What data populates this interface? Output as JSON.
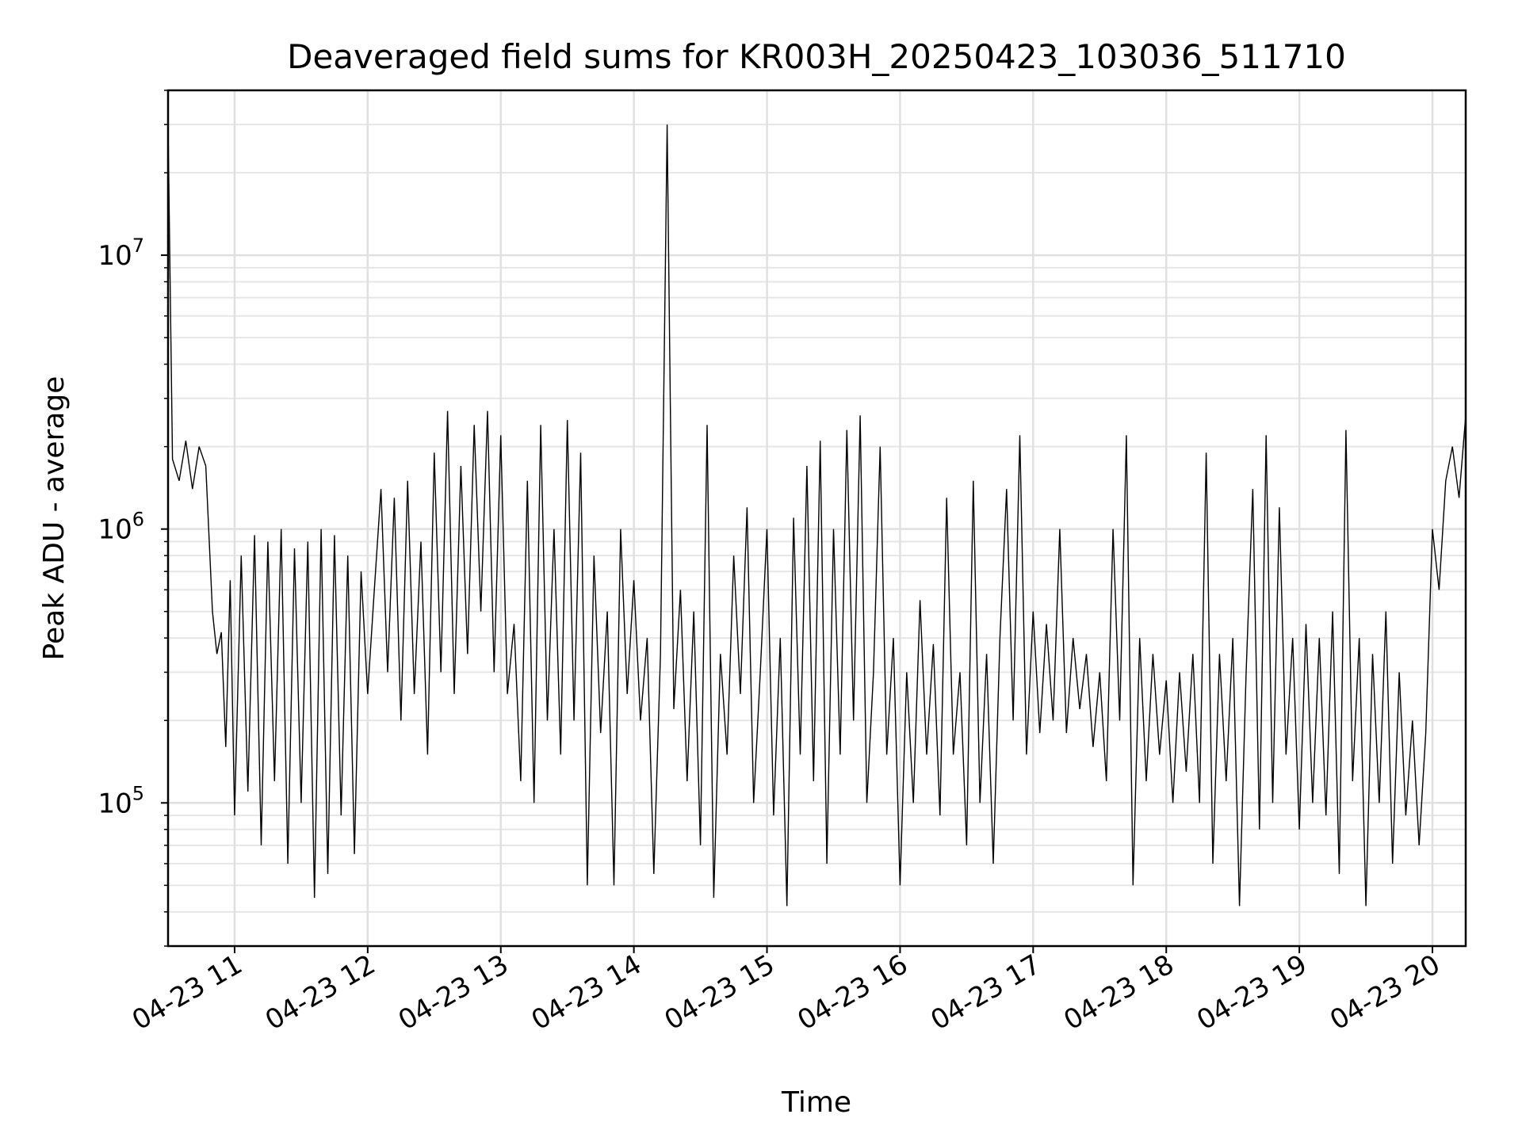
{
  "chart_data": {
    "type": "line",
    "title": "Deaveraged field sums for KR003H_20250423_103036_511710",
    "xlabel": "Time",
    "ylabel": "Peak ADU - average",
    "yscale": "log",
    "grid": true,
    "line_color": "#000000",
    "x_range": [
      "2025-04-23 10:30",
      "2025-04-23 20:15"
    ],
    "y_range": [
      30000,
      40000000
    ],
    "x_ticks": [
      "04-23 11",
      "04-23 12",
      "04-23 13",
      "04-23 14",
      "04-23 15",
      "04-23 16",
      "04-23 17",
      "04-23 18",
      "04-23 19",
      "04-23 20"
    ],
    "y_ticks": [
      {
        "base": "10",
        "exp": "5",
        "value": 100000
      },
      {
        "base": "10",
        "exp": "6",
        "value": 1000000
      },
      {
        "base": "10",
        "exp": "7",
        "value": 10000000
      }
    ],
    "series": [
      {
        "values_note": "",
        "points": [
          [
            "10:30",
            30000000
          ],
          [
            "10:32",
            1800000
          ],
          [
            "10:35",
            1500000
          ],
          [
            "10:38",
            2100000
          ],
          [
            "10:41",
            1400000
          ],
          [
            "10:44",
            2000000
          ],
          [
            "10:47",
            1700000
          ],
          [
            "10:50",
            500000
          ],
          [
            "10:52",
            350000
          ],
          [
            "10:54",
            420000
          ],
          [
            "10:56",
            160000
          ],
          [
            "10:58",
            650000
          ],
          [
            "11:00",
            90000
          ],
          [
            "11:03",
            800000
          ],
          [
            "11:06",
            110000
          ],
          [
            "11:09",
            950000
          ],
          [
            "11:12",
            70000
          ],
          [
            "11:15",
            900000
          ],
          [
            "11:18",
            120000
          ],
          [
            "11:21",
            1000000
          ],
          [
            "11:24",
            60000
          ],
          [
            "11:27",
            850000
          ],
          [
            "11:30",
            100000
          ],
          [
            "11:33",
            900000
          ],
          [
            "11:36",
            45000
          ],
          [
            "11:39",
            1000000
          ],
          [
            "11:42",
            55000
          ],
          [
            "11:45",
            950000
          ],
          [
            "11:48",
            90000
          ],
          [
            "11:51",
            800000
          ],
          [
            "11:54",
            65000
          ],
          [
            "11:57",
            700000
          ],
          [
            "12:00",
            250000
          ],
          [
            "12:03",
            600000
          ],
          [
            "12:06",
            1400000
          ],
          [
            "12:09",
            300000
          ],
          [
            "12:12",
            1300000
          ],
          [
            "12:15",
            200000
          ],
          [
            "12:18",
            1500000
          ],
          [
            "12:21",
            250000
          ],
          [
            "12:24",
            900000
          ],
          [
            "12:27",
            150000
          ],
          [
            "12:30",
            1900000
          ],
          [
            "12:33",
            300000
          ],
          [
            "12:36",
            2700000
          ],
          [
            "12:39",
            250000
          ],
          [
            "12:42",
            1700000
          ],
          [
            "12:45",
            350000
          ],
          [
            "12:48",
            2400000
          ],
          [
            "12:51",
            500000
          ],
          [
            "12:54",
            2700000
          ],
          [
            "12:57",
            300000
          ],
          [
            "13:00",
            2200000
          ],
          [
            "13:03",
            250000
          ],
          [
            "13:06",
            450000
          ],
          [
            "13:09",
            120000
          ],
          [
            "13:12",
            1500000
          ],
          [
            "13:15",
            100000
          ],
          [
            "13:18",
            2400000
          ],
          [
            "13:21",
            200000
          ],
          [
            "13:24",
            1000000
          ],
          [
            "13:27",
            150000
          ],
          [
            "13:30",
            2500000
          ],
          [
            "13:33",
            200000
          ],
          [
            "13:36",
            1900000
          ],
          [
            "13:39",
            50000
          ],
          [
            "13:42",
            800000
          ],
          [
            "13:45",
            180000
          ],
          [
            "13:48",
            500000
          ],
          [
            "13:51",
            50000
          ],
          [
            "13:54",
            1000000
          ],
          [
            "13:57",
            250000
          ],
          [
            "14:00",
            650000
          ],
          [
            "14:03",
            200000
          ],
          [
            "14:06",
            400000
          ],
          [
            "14:09",
            55000
          ],
          [
            "14:12",
            350000
          ],
          [
            "14:15",
            30000000
          ],
          [
            "14:18",
            220000
          ],
          [
            "14:21",
            600000
          ],
          [
            "14:24",
            120000
          ],
          [
            "14:27",
            500000
          ],
          [
            "14:30",
            70000
          ],
          [
            "14:33",
            2400000
          ],
          [
            "14:36",
            45000
          ],
          [
            "14:39",
            350000
          ],
          [
            "14:42",
            150000
          ],
          [
            "14:45",
            800000
          ],
          [
            "14:48",
            250000
          ],
          [
            "14:51",
            1200000
          ],
          [
            "14:54",
            100000
          ],
          [
            "14:57",
            300000
          ],
          [
            "15:00",
            1000000
          ],
          [
            "15:03",
            90000
          ],
          [
            "15:06",
            400000
          ],
          [
            "15:09",
            42000
          ],
          [
            "15:12",
            1100000
          ],
          [
            "15:15",
            150000
          ],
          [
            "15:18",
            1700000
          ],
          [
            "15:21",
            120000
          ],
          [
            "15:24",
            2100000
          ],
          [
            "15:27",
            60000
          ],
          [
            "15:30",
            1000000
          ],
          [
            "15:33",
            150000
          ],
          [
            "15:36",
            2300000
          ],
          [
            "15:39",
            200000
          ],
          [
            "15:42",
            2600000
          ],
          [
            "15:45",
            100000
          ],
          [
            "15:48",
            300000
          ],
          [
            "15:51",
            2000000
          ],
          [
            "15:54",
            150000
          ],
          [
            "15:57",
            400000
          ],
          [
            "16:00",
            50000
          ],
          [
            "16:03",
            300000
          ],
          [
            "16:06",
            100000
          ],
          [
            "16:09",
            550000
          ],
          [
            "16:12",
            150000
          ],
          [
            "16:15",
            380000
          ],
          [
            "16:18",
            90000
          ],
          [
            "16:21",
            1300000
          ],
          [
            "16:24",
            150000
          ],
          [
            "16:27",
            300000
          ],
          [
            "16:30",
            70000
          ],
          [
            "16:33",
            1500000
          ],
          [
            "16:36",
            100000
          ],
          [
            "16:39",
            350000
          ],
          [
            "16:42",
            60000
          ],
          [
            "16:45",
            400000
          ],
          [
            "16:48",
            1400000
          ],
          [
            "16:51",
            200000
          ],
          [
            "16:54",
            2200000
          ],
          [
            "16:57",
            150000
          ],
          [
            "17:00",
            500000
          ],
          [
            "17:03",
            180000
          ],
          [
            "17:06",
            450000
          ],
          [
            "17:09",
            200000
          ],
          [
            "17:12",
            1000000
          ],
          [
            "17:15",
            180000
          ],
          [
            "17:18",
            400000
          ],
          [
            "17:21",
            220000
          ],
          [
            "17:24",
            350000
          ],
          [
            "17:27",
            160000
          ],
          [
            "17:30",
            300000
          ],
          [
            "17:33",
            120000
          ],
          [
            "17:36",
            1000000
          ],
          [
            "17:39",
            200000
          ],
          [
            "17:42",
            2200000
          ],
          [
            "17:45",
            50000
          ],
          [
            "17:48",
            400000
          ],
          [
            "17:51",
            120000
          ],
          [
            "17:54",
            350000
          ],
          [
            "17:57",
            150000
          ],
          [
            "18:00",
            280000
          ],
          [
            "18:03",
            100000
          ],
          [
            "18:06",
            300000
          ],
          [
            "18:09",
            130000
          ],
          [
            "18:12",
            350000
          ],
          [
            "18:15",
            100000
          ],
          [
            "18:18",
            1900000
          ],
          [
            "18:21",
            60000
          ],
          [
            "18:24",
            350000
          ],
          [
            "18:27",
            120000
          ],
          [
            "18:30",
            400000
          ],
          [
            "18:33",
            42000
          ],
          [
            "18:36",
            300000
          ],
          [
            "18:39",
            1400000
          ],
          [
            "18:42",
            80000
          ],
          [
            "18:45",
            2200000
          ],
          [
            "18:48",
            100000
          ],
          [
            "18:51",
            1200000
          ],
          [
            "18:54",
            150000
          ],
          [
            "18:57",
            400000
          ],
          [
            "19:00",
            80000
          ],
          [
            "19:03",
            450000
          ],
          [
            "19:06",
            100000
          ],
          [
            "19:09",
            400000
          ],
          [
            "19:12",
            90000
          ],
          [
            "19:15",
            500000
          ],
          [
            "19:18",
            55000
          ],
          [
            "19:21",
            2300000
          ],
          [
            "19:24",
            120000
          ],
          [
            "19:27",
            400000
          ],
          [
            "19:30",
            42000
          ],
          [
            "19:33",
            350000
          ],
          [
            "19:36",
            100000
          ],
          [
            "19:39",
            500000
          ],
          [
            "19:42",
            60000
          ],
          [
            "19:45",
            300000
          ],
          [
            "19:48",
            90000
          ],
          [
            "19:51",
            200000
          ],
          [
            "19:54",
            70000
          ],
          [
            "19:57",
            180000
          ],
          [
            "20:00",
            1000000
          ],
          [
            "20:03",
            600000
          ],
          [
            "20:06",
            1500000
          ],
          [
            "20:09",
            2000000
          ],
          [
            "20:12",
            1300000
          ],
          [
            "20:15",
            2600000
          ]
        ]
      }
    ]
  }
}
